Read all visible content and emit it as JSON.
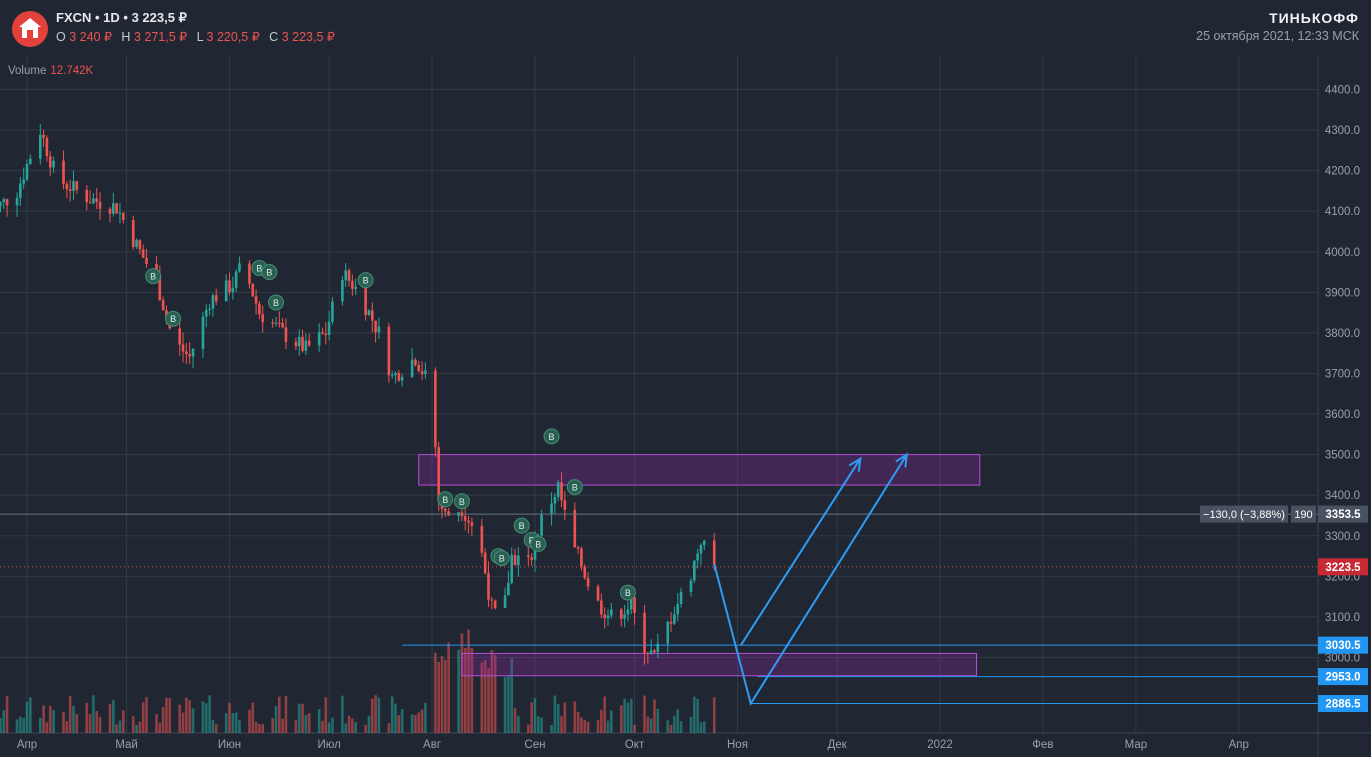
{
  "header": {
    "ticker": "FXCN",
    "interval": "1D",
    "price": "3 223,5 ₽",
    "ohlc": [
      {
        "key": "O",
        "value": "3 240 ₽"
      },
      {
        "key": "H",
        "value": "3 271,5 ₽"
      },
      {
        "key": "L",
        "value": "3 220,5 ₽"
      },
      {
        "key": "C",
        "value": "3 223,5 ₽"
      }
    ],
    "brand": "ТИНЬКОФФ",
    "datetime": "25 октября 2021, 12:33 МСК"
  },
  "volume": {
    "label": "Volume",
    "value": "12.742K"
  },
  "chart_data": {
    "type": "candlestick",
    "ylim": [
      2820,
      4520
    ],
    "y_ticks": [
      "4400.0",
      "4300.0",
      "4200.0",
      "4100.0",
      "4000.0",
      "3900.0",
      "3800.0",
      "3700.0",
      "3600.0",
      "3500.0",
      "3400.0",
      "3300.0",
      "3200.0",
      "3100.0",
      "3000.0"
    ],
    "y_tick_values": [
      4400,
      4300,
      4200,
      4100,
      4000,
      3900,
      3800,
      3700,
      3600,
      3500,
      3400,
      3300,
      3200,
      3100,
      3000
    ],
    "x_ticks": [
      "Апр",
      "Май",
      "Июн",
      "Июл",
      "Авг",
      "Сен",
      "Окт",
      "Ноя",
      "Дек",
      "2022",
      "Фев",
      "Мар",
      "Апр"
    ],
    "x_tick_dates": [
      "2021-04-01",
      "2021-05-01",
      "2021-06-01",
      "2021-07-01",
      "2021-08-01",
      "2021-09-01",
      "2021-10-01",
      "2021-11-01",
      "2021-12-01",
      "2022-01-01",
      "2022-02-01",
      "2022-03-01",
      "2022-04-01"
    ],
    "candle_range": [
      "2021-03-19",
      "2021-10-25"
    ],
    "price_path": [
      [
        "2021-03-19",
        4080
      ],
      [
        "2021-03-29",
        4150
      ],
      [
        "2021-04-05",
        4300
      ],
      [
        "2021-04-10",
        4180
      ],
      [
        "2021-04-20",
        4130
      ],
      [
        "2021-04-28",
        4110
      ],
      [
        "2021-05-05",
        4000
      ],
      [
        "2021-05-10",
        3930
      ],
      [
        "2021-05-15",
        3780
      ],
      [
        "2021-05-20",
        3740
      ],
      [
        "2021-05-26",
        3880
      ],
      [
        "2021-06-02",
        3920
      ],
      [
        "2021-06-05",
        3970
      ],
      [
        "2021-06-10",
        3850
      ],
      [
        "2021-06-17",
        3800
      ],
      [
        "2021-06-24",
        3760
      ],
      [
        "2021-06-30",
        3800
      ],
      [
        "2021-07-05",
        3950
      ],
      [
        "2021-07-10",
        3900
      ],
      [
        "2021-07-16",
        3800
      ],
      [
        "2021-07-20",
        3690
      ],
      [
        "2021-07-27",
        3740
      ],
      [
        "2021-07-30",
        3690
      ],
      [
        "2021-08-02",
        3520
      ],
      [
        "2021-08-03",
        3390
      ],
      [
        "2021-08-05",
        3350
      ],
      [
        "2021-08-10",
        3370
      ],
      [
        "2021-08-15",
        3300
      ],
      [
        "2021-08-19",
        3120
      ],
      [
        "2021-08-22",
        3080
      ],
      [
        "2021-08-25",
        3250
      ],
      [
        "2021-08-30",
        3230
      ],
      [
        "2021-09-03",
        3340
      ],
      [
        "2021-09-08",
        3420
      ],
      [
        "2021-09-12",
        3280
      ],
      [
        "2021-09-15",
        3230
      ],
      [
        "2021-09-19",
        3140
      ],
      [
        "2021-09-24",
        3100
      ],
      [
        "2021-09-30",
        3130
      ],
      [
        "2021-10-03",
        3040
      ],
      [
        "2021-10-07",
        3000
      ],
      [
        "2021-10-13",
        3120
      ],
      [
        "2021-10-17",
        3180
      ],
      [
        "2021-10-21",
        3290
      ],
      [
        "2021-10-25",
        3223.5
      ]
    ],
    "last_price": "3223.5",
    "last_price_value": 3223.5,
    "crosshair_price": "3353.5",
    "crosshair_price_value": 3353.5,
    "crosshair_change": "−130,0 (−3,88%)",
    "crosshair_bars": "190",
    "levels": [
      {
        "label": "3030.5",
        "value": 3030.5,
        "from": "2021-07-23"
      },
      {
        "label": "2953.0",
        "value": 2953.0,
        "from": "2021-11-07"
      },
      {
        "label": "2886.5",
        "value": 2886.5,
        "from": "2021-11-05"
      }
    ],
    "zones": [
      {
        "from": "2021-07-28",
        "to": "2022-01-13",
        "low": 3425,
        "high": 3500
      },
      {
        "from": "2021-08-10",
        "to": "2022-01-12",
        "low": 2955,
        "high": 3010
      }
    ],
    "arrows": [
      [
        [
          "2021-10-25",
          3230
        ],
        [
          "2021-11-05",
          2886.5
        ],
        [
          "2021-12-22",
          3500
        ]
      ],
      [
        [
          "2021-11-02",
          3030
        ],
        [
          "2021-12-08",
          3490
        ]
      ]
    ],
    "markers": [
      [
        "2021-05-09",
        3940
      ],
      [
        "2021-05-15",
        3835
      ],
      [
        "2021-06-10",
        3960
      ],
      [
        "2021-06-13",
        3950
      ],
      [
        "2021-06-15",
        3875
      ],
      [
        "2021-07-12",
        3930
      ],
      [
        "2021-08-05",
        3390
      ],
      [
        "2021-08-10",
        3385
      ],
      [
        "2021-08-21",
        3250
      ],
      [
        "2021-08-22",
        3245
      ],
      [
        "2021-08-28",
        3325
      ],
      [
        "2021-08-31",
        3290
      ],
      [
        "2021-09-02",
        3280
      ],
      [
        "2021-09-06",
        3545
      ],
      [
        "2021-09-13",
        3420
      ],
      [
        "2021-09-29",
        3160
      ]
    ]
  }
}
